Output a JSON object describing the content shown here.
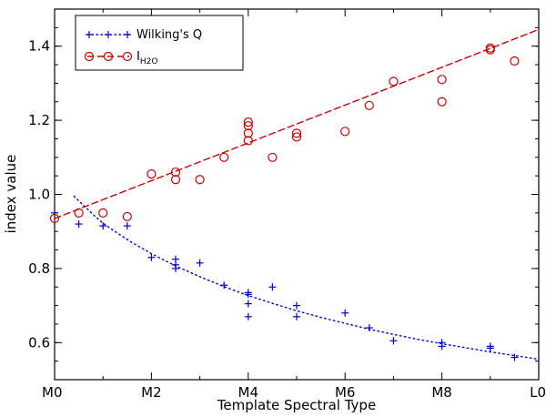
{
  "chart_data": {
    "type": "scatter",
    "xlabel": "Template Spectral Type",
    "ylabel": "index value",
    "xlim": [
      0,
      10
    ],
    "ylim": [
      0.5,
      1.5
    ],
    "xticks": [
      {
        "value": 0,
        "label": "M0"
      },
      {
        "value": 2,
        "label": "M2"
      },
      {
        "value": 4,
        "label": "M4"
      },
      {
        "value": 6,
        "label": "M6"
      },
      {
        "value": 8,
        "label": "M8"
      },
      {
        "value": 10,
        "label": "L0"
      }
    ],
    "yticks": [
      {
        "value": 0.6,
        "label": "0.6"
      },
      {
        "value": 0.8,
        "label": "0.8"
      },
      {
        "value": 1.0,
        "label": "1.0"
      },
      {
        "value": 1.2,
        "label": "1.2"
      },
      {
        "value": 1.4,
        "label": "1.4"
      }
    ],
    "legend_position": "top-left",
    "series": [
      {
        "name": "Wilking's Q",
        "legend_main": "Wilking's Q",
        "marker": "plus",
        "fit": "dotted",
        "color": "#0000cc",
        "points": [
          [
            0,
            0.95
          ],
          [
            0.5,
            0.92
          ],
          [
            1,
            0.915
          ],
          [
            1.5,
            0.915
          ],
          [
            2,
            0.83
          ],
          [
            2.5,
            0.825
          ],
          [
            2.5,
            0.81
          ],
          [
            2.5,
            0.8
          ],
          [
            3,
            0.815
          ],
          [
            3.5,
            0.755
          ],
          [
            4,
            0.735
          ],
          [
            4,
            0.73
          ],
          [
            4,
            0.705
          ],
          [
            4,
            0.67
          ],
          [
            4.5,
            0.75
          ],
          [
            5,
            0.7
          ],
          [
            5,
            0.67
          ],
          [
            6,
            0.68
          ],
          [
            6.5,
            0.64
          ],
          [
            7,
            0.605
          ],
          [
            8,
            0.6
          ],
          [
            8,
            0.59
          ],
          [
            9,
            0.59
          ],
          [
            9,
            0.585
          ],
          [
            9.5,
            0.56
          ]
        ],
        "fit_curve": [
          [
            0.4,
            0.995
          ],
          [
            0.6,
            0.97
          ],
          [
            0.8,
            0.945
          ],
          [
            1.0,
            0.922
          ],
          [
            1.3,
            0.895
          ],
          [
            1.6,
            0.87
          ],
          [
            2.0,
            0.84
          ],
          [
            2.5,
            0.807
          ],
          [
            3.0,
            0.778
          ],
          [
            3.5,
            0.751
          ],
          [
            4.0,
            0.727
          ],
          [
            4.5,
            0.706
          ],
          [
            5.0,
            0.686
          ],
          [
            5.5,
            0.668
          ],
          [
            6.0,
            0.652
          ],
          [
            6.5,
            0.636
          ],
          [
            7.0,
            0.622
          ],
          [
            7.5,
            0.609
          ],
          [
            8.0,
            0.597
          ],
          [
            8.5,
            0.586
          ],
          [
            9.0,
            0.575
          ],
          [
            9.5,
            0.565
          ],
          [
            10.0,
            0.555
          ]
        ]
      },
      {
        "name": "I H2O",
        "legend_main": "I",
        "legend_sub": "H2O",
        "marker": "circle",
        "fit": "dashed",
        "color": "#cc0000",
        "points": [
          [
            0,
            0.935
          ],
          [
            0.5,
            0.95
          ],
          [
            1,
            0.95
          ],
          [
            1.5,
            0.94
          ],
          [
            2,
            1.055
          ],
          [
            2.5,
            1.06
          ],
          [
            2.5,
            1.04
          ],
          [
            3,
            1.04
          ],
          [
            3.5,
            1.1
          ],
          [
            4,
            1.195
          ],
          [
            4,
            1.185
          ],
          [
            4,
            1.165
          ],
          [
            4,
            1.145
          ],
          [
            4.5,
            1.1
          ],
          [
            5,
            1.165
          ],
          [
            5,
            1.155
          ],
          [
            6,
            1.17
          ],
          [
            6.5,
            1.24
          ],
          [
            7,
            1.305
          ],
          [
            8,
            1.31
          ],
          [
            8,
            1.25
          ],
          [
            9,
            1.395
          ],
          [
            9,
            1.39
          ],
          [
            9.5,
            1.36
          ]
        ],
        "fit_curve": [
          [
            0,
            0.935
          ],
          [
            10,
            1.445
          ]
        ]
      }
    ]
  }
}
